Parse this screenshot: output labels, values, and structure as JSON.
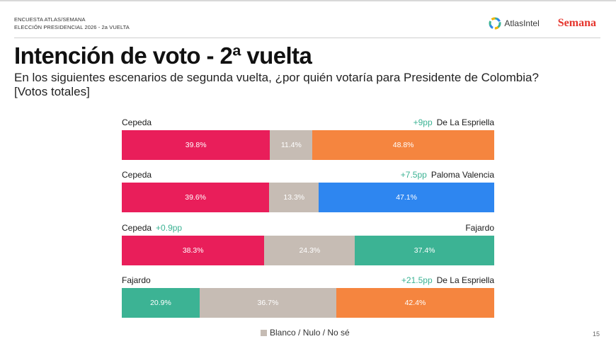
{
  "header": {
    "survey_line1": "ENCUESTA ATLAS/SEMANA",
    "survey_line2": "ELECCIÓN PRESIDENCIAL 2026 - 2a VUELTA",
    "atlas_logo_text": "AtlasIntel",
    "semana_logo_text": "Semana"
  },
  "title": "Intención de voto - 2ª vuelta",
  "subtitle_line1": "En los siguientes escenarios de segunda vuelta, ¿por quién votaría para Presidente de Colombia?",
  "subtitle_line2": "[Votos totales]",
  "colors": {
    "cepeda": "#e91e5a",
    "de_la_espriella": "#f5853f",
    "paloma_valencia": "#2e86f0",
    "fajardo": "#3cb394",
    "blanco": "#c6bcb4",
    "delta_text": "#3cb394"
  },
  "chart_data": {
    "type": "bar",
    "orientation": "horizontal-stacked-100",
    "legend": {
      "label": "Blanco / Nulo / No sé",
      "placement": "bottom-center"
    },
    "scenarios": [
      {
        "left_name": "Cepeda",
        "left_delta": "",
        "right_name": "De La Espriella",
        "right_delta": "+9pp",
        "values": [
          39.8,
          11.4,
          48.8
        ],
        "labels": [
          "39.8%",
          "11.4%",
          "48.8%"
        ],
        "colors": [
          "#e91e5a",
          "#c6bcb4",
          "#f5853f"
        ]
      },
      {
        "left_name": "Cepeda",
        "left_delta": "",
        "right_name": "Paloma Valencia",
        "right_delta": "+7.5pp",
        "values": [
          39.6,
          13.3,
          47.1
        ],
        "labels": [
          "39.6%",
          "13.3%",
          "47.1%"
        ],
        "colors": [
          "#e91e5a",
          "#c6bcb4",
          "#2e86f0"
        ]
      },
      {
        "left_name": "Cepeda",
        "left_delta": "+0.9pp",
        "right_name": "Fajardo",
        "right_delta": "",
        "values": [
          38.3,
          24.3,
          37.4
        ],
        "labels": [
          "38.3%",
          "24.3%",
          "37.4%"
        ],
        "colors": [
          "#e91e5a",
          "#c6bcb4",
          "#3cb394"
        ]
      },
      {
        "left_name": "Fajardo",
        "left_delta": "",
        "right_name": "De La Espriella",
        "right_delta": "+21.5pp",
        "values": [
          20.9,
          36.7,
          42.4
        ],
        "labels": [
          "20.9%",
          "36.7%",
          "42.4%"
        ],
        "colors": [
          "#3cb394",
          "#c6bcb4",
          "#f5853f"
        ]
      }
    ]
  },
  "page_number": "15"
}
